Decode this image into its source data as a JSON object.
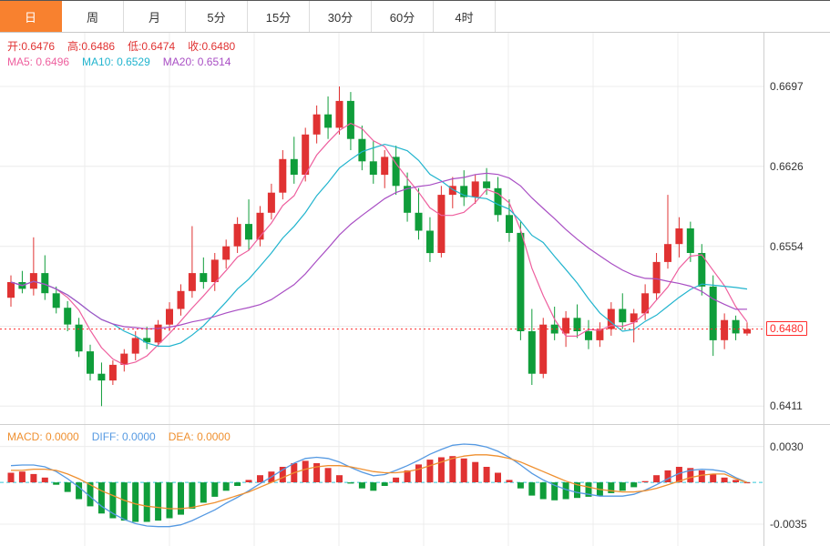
{
  "tabs": {
    "items": [
      "日",
      "周",
      "月",
      "5分",
      "15分",
      "30分",
      "60分",
      "4时"
    ],
    "active": "日",
    "active_index": 0
  },
  "quote": {
    "open": "开:0.6476",
    "high": "高:0.6486",
    "low": "低:0.6474",
    "close": "收:0.6480"
  },
  "ma_legend": {
    "ma5": "MA5: 0.6496",
    "ma10": "MA10: 0.6529",
    "ma20": "MA20: 0.6514"
  },
  "macd_legend": {
    "macd": "MACD: 0.0000",
    "diff": "DIFF: 0.0000",
    "dea": "DEA: 0.0000"
  },
  "colors": {
    "up": "#e03232",
    "down": "#0f9d3a",
    "ma5": "#ee5f9e",
    "ma10": "#21b4ce",
    "ma20": "#a94fc4",
    "diff": "#5599e2",
    "dea": "#ef9030",
    "price_line": "#ff2b2b",
    "zero_line": "#35c6d9",
    "tab_active_bg": "#f8812f",
    "grid": "#ececec",
    "axis_text": "#333333"
  },
  "chart_data": [
    {
      "type": "candlestick",
      "title": "daily-kline",
      "ma_periods": [
        5,
        10,
        20
      ],
      "ylim": [
        0.6395,
        0.6745
      ],
      "grid_values": [
        0.6697,
        0.66255,
        0.6554,
        0.64825,
        0.6411
      ],
      "axis_labels": [
        {
          "text": "0.6697",
          "value": 0.6697
        },
        {
          "text": "0.6626",
          "value": 0.66255
        },
        {
          "text": "0.6554",
          "value": 0.6554
        },
        {
          "text": "0.6411",
          "value": 0.6411
        }
      ],
      "current_price": {
        "text": "0.6480",
        "value": 0.648
      },
      "ohlc": [
        [
          0.6508,
          0.6528,
          0.65,
          0.6522
        ],
        [
          0.6522,
          0.6532,
          0.6512,
          0.6516
        ],
        [
          0.6516,
          0.6562,
          0.651,
          0.653
        ],
        [
          0.653,
          0.6546,
          0.6506,
          0.6512
        ],
        [
          0.6512,
          0.6518,
          0.6494,
          0.6499
        ],
        [
          0.6499,
          0.6505,
          0.6478,
          0.6484
        ],
        [
          0.6484,
          0.649,
          0.6455,
          0.646
        ],
        [
          0.646,
          0.6466,
          0.6434,
          0.644
        ],
        [
          0.644,
          0.645,
          0.6411,
          0.6434
        ],
        [
          0.6434,
          0.6452,
          0.643,
          0.6448
        ],
        [
          0.6448,
          0.6462,
          0.6442,
          0.6458
        ],
        [
          0.6458,
          0.6478,
          0.6452,
          0.6472
        ],
        [
          0.6472,
          0.6482,
          0.6462,
          0.6468
        ],
        [
          0.6468,
          0.6488,
          0.6464,
          0.6484
        ],
        [
          0.6484,
          0.6504,
          0.6478,
          0.6498
        ],
        [
          0.6498,
          0.652,
          0.6492,
          0.6514
        ],
        [
          0.6514,
          0.6572,
          0.6508,
          0.653
        ],
        [
          0.653,
          0.6544,
          0.6516,
          0.6522
        ],
        [
          0.6522,
          0.6548,
          0.6514,
          0.6542
        ],
        [
          0.6542,
          0.656,
          0.6534,
          0.6554
        ],
        [
          0.6554,
          0.658,
          0.6548,
          0.6574
        ],
        [
          0.6574,
          0.6596,
          0.655,
          0.656
        ],
        [
          0.656,
          0.659,
          0.6554,
          0.6584
        ],
        [
          0.6584,
          0.661,
          0.6578,
          0.6602
        ],
        [
          0.6602,
          0.664,
          0.6596,
          0.6632
        ],
        [
          0.6632,
          0.6652,
          0.661,
          0.6618
        ],
        [
          0.6618,
          0.666,
          0.6612,
          0.6654
        ],
        [
          0.6654,
          0.668,
          0.6646,
          0.6672
        ],
        [
          0.6672,
          0.6688,
          0.665,
          0.666
        ],
        [
          0.666,
          0.6697,
          0.6654,
          0.6684
        ],
        [
          0.6684,
          0.6692,
          0.664,
          0.665
        ],
        [
          0.665,
          0.6662,
          0.6622,
          0.663
        ],
        [
          0.663,
          0.6648,
          0.661,
          0.6618
        ],
        [
          0.6618,
          0.664,
          0.6606,
          0.6634
        ],
        [
          0.6634,
          0.6644,
          0.66,
          0.6608
        ],
        [
          0.6608,
          0.662,
          0.6576,
          0.6584
        ],
        [
          0.6584,
          0.6606,
          0.656,
          0.6568
        ],
        [
          0.6568,
          0.658,
          0.654,
          0.6548
        ],
        [
          0.6548,
          0.6608,
          0.6544,
          0.66
        ],
        [
          0.66,
          0.6616,
          0.6588,
          0.6608
        ],
        [
          0.6608,
          0.6622,
          0.659,
          0.6598
        ],
        [
          0.6598,
          0.6618,
          0.6592,
          0.6612
        ],
        [
          0.6612,
          0.6624,
          0.66,
          0.6606
        ],
        [
          0.6606,
          0.6616,
          0.6576,
          0.6582
        ],
        [
          0.6582,
          0.6596,
          0.6558,
          0.6566
        ],
        [
          0.6566,
          0.6576,
          0.647,
          0.6478
        ],
        [
          0.6478,
          0.6498,
          0.643,
          0.644
        ],
        [
          0.644,
          0.649,
          0.6436,
          0.6484
        ],
        [
          0.6484,
          0.65,
          0.647,
          0.6476
        ],
        [
          0.6476,
          0.6496,
          0.6464,
          0.649
        ],
        [
          0.649,
          0.6502,
          0.6472,
          0.6478
        ],
        [
          0.6478,
          0.6488,
          0.6462,
          0.647
        ],
        [
          0.647,
          0.6486,
          0.6464,
          0.648
        ],
        [
          0.648,
          0.6504,
          0.6474,
          0.6498
        ],
        [
          0.6498,
          0.6512,
          0.648,
          0.6486
        ],
        [
          0.6486,
          0.6498,
          0.6468,
          0.6494
        ],
        [
          0.6494,
          0.652,
          0.6488,
          0.6512
        ],
        [
          0.6512,
          0.6548,
          0.6506,
          0.654
        ],
        [
          0.654,
          0.66,
          0.6534,
          0.6556
        ],
        [
          0.6556,
          0.658,
          0.6544,
          0.657
        ],
        [
          0.657,
          0.6576,
          0.654,
          0.6548
        ],
        [
          0.6548,
          0.6556,
          0.651,
          0.6518
        ],
        [
          0.6518,
          0.6528,
          0.6456,
          0.647
        ],
        [
          0.647,
          0.6494,
          0.6462,
          0.6488
        ],
        [
          0.6488,
          0.6492,
          0.647,
          0.6476
        ],
        [
          0.6476,
          0.6486,
          0.6474,
          0.648
        ]
      ]
    },
    {
      "type": "bar",
      "title": "macd",
      "ylim": [
        -0.0054,
        0.0048
      ],
      "zero_line": 0,
      "axis_labels": [
        {
          "text": "0.0030",
          "value": 0.003
        },
        {
          "text": "-0.0035",
          "value": -0.0035
        }
      ],
      "histogram": [
        0.0008,
        0.0009,
        0.0007,
        0.0004,
        -0.0002,
        -0.0008,
        -0.0014,
        -0.002,
        -0.0026,
        -0.003,
        -0.0032,
        -0.0033,
        -0.0033,
        -0.0032,
        -0.003,
        -0.0027,
        -0.0022,
        -0.0017,
        -0.0012,
        -0.0007,
        -0.0003,
        0.0002,
        0.0006,
        0.0009,
        0.0013,
        0.0016,
        0.0018,
        0.0016,
        0.0012,
        0.0006,
        -0.0001,
        -0.0005,
        -0.0007,
        -0.0003,
        0.0004,
        0.001,
        0.0015,
        0.0019,
        0.0021,
        0.0022,
        0.002,
        0.0017,
        0.0013,
        0.0008,
        0.0002,
        -0.0005,
        -0.0011,
        -0.0014,
        -0.0015,
        -0.0014,
        -0.0013,
        -0.0012,
        -0.0011,
        -0.0009,
        -0.0007,
        -0.0004,
        0.0001,
        0.0006,
        0.001,
        0.0013,
        0.0012,
        0.001,
        0.0007,
        0.0004,
        0.0002,
        0.0
      ],
      "diff": [
        0.0014,
        0.00145,
        0.00145,
        0.0013,
        0.0009,
        0.0003,
        -0.0004,
        -0.0012,
        -0.002,
        -0.0026,
        -0.0031,
        -0.00345,
        -0.00365,
        -0.0037,
        -0.0037,
        -0.00355,
        -0.0032,
        -0.00275,
        -0.0023,
        -0.00175,
        -0.00125,
        -0.0007,
        -0.0001,
        0.00045,
        0.00105,
        0.0016,
        0.002,
        0.0021,
        0.002,
        0.0017,
        0.00125,
        0.00085,
        0.00055,
        0.00065,
        0.001,
        0.0014,
        0.00185,
        0.00235,
        0.00275,
        0.0031,
        0.0032,
        0.00315,
        0.00295,
        0.0026,
        0.0021,
        0.00145,
        0.00075,
        0.0002,
        -0.00025,
        -0.0006,
        -0.00085,
        -0.001,
        -0.00115,
        -0.00115,
        -0.00115,
        -0.001,
        -0.00065,
        -0.0002,
        0.0003,
        0.00075,
        0.001,
        0.0011,
        0.00105,
        0.0009,
        0.0004,
        0.0
      ],
      "dea": [
        0.001,
        0.001,
        0.0011,
        0.0011,
        0.001,
        0.0007,
        0.0003,
        -0.0002,
        -0.0007,
        -0.0011,
        -0.0015,
        -0.0018,
        -0.002,
        -0.0021,
        -0.0022,
        -0.0022,
        -0.0021,
        -0.0019,
        -0.0017,
        -0.0014,
        -0.0011,
        -0.0008,
        -0.0004,
        0.0,
        0.0004,
        0.0008,
        0.0011,
        0.0013,
        0.0014,
        0.0014,
        0.0013,
        0.0011,
        0.0009,
        0.0008,
        0.0008,
        0.0009,
        0.0011,
        0.0014,
        0.0017,
        0.002,
        0.0022,
        0.0023,
        0.0023,
        0.0022,
        0.002,
        0.0017,
        0.0013,
        0.0009,
        0.0005,
        0.0001,
        -0.0002,
        -0.0004,
        -0.0006,
        -0.0007,
        -0.0008,
        -0.0008,
        -0.0007,
        -0.0005,
        -0.0002,
        0.0001,
        0.0004,
        0.0006,
        0.0007,
        0.0007,
        0.0003,
        0.0
      ]
    }
  ]
}
